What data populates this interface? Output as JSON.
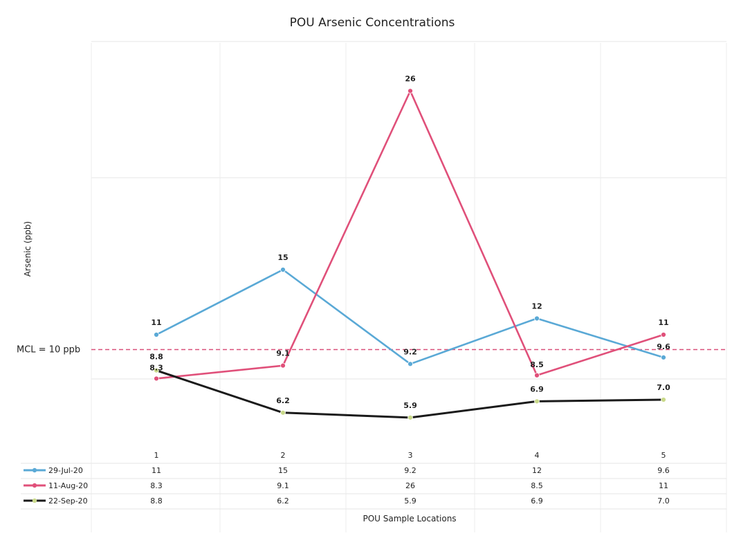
{
  "chart_data": {
    "type": "line",
    "title": "POU Arsenic Concentrations",
    "xlabel": "POU Sample Locations",
    "ylabel": "Arsenic (ppb)",
    "categories": [
      "1",
      "2",
      "3",
      "4",
      "5"
    ],
    "series": [
      {
        "name": "29-Jul-20",
        "values": [
          11,
          15,
          9.2,
          12,
          9.6
        ],
        "labels": [
          "11",
          "15",
          "9.2",
          "12",
          "9.6"
        ],
        "color": "#5aa9d6"
      },
      {
        "name": "11-Aug-20",
        "values": [
          8.3,
          9.1,
          26,
          8.5,
          11
        ],
        "labels": [
          "8.3",
          "9.1",
          "26",
          "8.5",
          "11"
        ],
        "color": "#e0507a"
      },
      {
        "name": "22-Sep-20",
        "values": [
          8.8,
          6.2,
          5.9,
          6.9,
          7.0
        ],
        "labels": [
          "8.8",
          "6.2",
          "5.9",
          "6.9",
          "7.0"
        ],
        "color": "#1a1a1a",
        "marker_color": "#c9d98a"
      }
    ],
    "reference_line": {
      "label": "MCL = 10 ppb",
      "value": 10,
      "color": "#d9507a",
      "style": "dashed"
    },
    "ylim": [
      0,
      30
    ],
    "grid": true,
    "legend": "data-table-below"
  }
}
